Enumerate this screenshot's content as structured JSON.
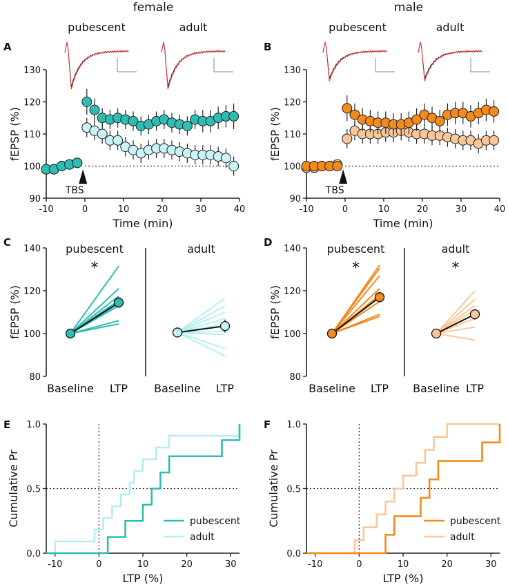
{
  "colors": {
    "teal": "#2dbdb3",
    "teal_light": "#c9f4f6",
    "teal_light_line": "#b5eef2",
    "orange": "#f28a1c",
    "orange_light": "#fbc79a",
    "red_trace": "#e8383c",
    "black": "#111111"
  },
  "headers": {
    "female": "female",
    "male": "male",
    "pubescent": "pubescent",
    "adult": "adult"
  },
  "chart_data": [
    {
      "panel": "A",
      "type": "line",
      "title": "female",
      "xlabel": "Time (min)",
      "ylabel": "fEPSP (%)",
      "xlim": [
        -10,
        40
      ],
      "ylim": [
        90,
        130
      ],
      "xticks": [
        -10,
        0,
        10,
        20,
        30,
        40
      ],
      "yticks": [
        90,
        100,
        110,
        120,
        130
      ],
      "baseline": 100,
      "annotation": "TBS",
      "series": [
        {
          "name": "pubescent",
          "x": [
            -10,
            -8,
            -6,
            -4,
            -2,
            0.5,
            2.5,
            4.5,
            6.5,
            8.5,
            10.5,
            12.5,
            14.5,
            16.5,
            18.5,
            20.5,
            22.5,
            24.5,
            26.5,
            28.5,
            30.5,
            32.5,
            34.5,
            36.5,
            38.5
          ],
          "y": [
            99,
            99,
            100,
            100.5,
            101,
            120,
            117.5,
            115,
            114.5,
            115,
            114.5,
            114,
            112.5,
            113,
            114,
            114.5,
            113.5,
            113,
            112.5,
            114.5,
            114,
            114,
            115,
            115.5,
            115.5
          ],
          "err": [
            1.2,
            1.2,
            1.2,
            1.2,
            1.2,
            4,
            3.5,
            3,
            3,
            3,
            3,
            3,
            3,
            3,
            3,
            3,
            3,
            3,
            3,
            3,
            3.5,
            3.5,
            3.5,
            3.5,
            4
          ]
        },
        {
          "name": "adult",
          "x": [
            -10,
            -8,
            -6,
            -4,
            -2,
            0.5,
            2.5,
            4.5,
            6.5,
            8.5,
            10.5,
            12.5,
            14.5,
            16.5,
            18.5,
            20.5,
            22.5,
            24.5,
            26.5,
            28.5,
            30.5,
            32.5,
            34.5,
            36.5,
            38.5
          ],
          "y": [
            99,
            99,
            100,
            100.5,
            101,
            112,
            111,
            110,
            108,
            108,
            106,
            105,
            104,
            105,
            105.5,
            105.5,
            105,
            104.5,
            104,
            103.5,
            103.5,
            103.5,
            103,
            102.5,
            100
          ],
          "err": [
            1.2,
            1.2,
            1.2,
            1.2,
            1.2,
            3,
            3,
            3,
            3,
            3,
            3,
            3,
            3,
            3,
            3,
            3,
            3,
            3,
            3,
            3,
            3,
            3,
            3,
            3,
            3
          ]
        }
      ]
    },
    {
      "panel": "B",
      "type": "line",
      "title": "male",
      "xlabel": "Time (min)",
      "ylabel": "fEPSP (%)",
      "xlim": [
        -10,
        40
      ],
      "ylim": [
        90,
        130
      ],
      "xticks": [
        -10,
        0,
        10,
        20,
        30,
        40
      ],
      "yticks": [
        90,
        100,
        110,
        120,
        130
      ],
      "baseline": 100,
      "annotation": "TBS",
      "series": [
        {
          "name": "pubescent",
          "x": [
            -10,
            -8,
            -6,
            -4,
            -2,
            0.5,
            2.5,
            4.5,
            6.5,
            8.5,
            10.5,
            12.5,
            14.5,
            16.5,
            18.5,
            20.5,
            22.5,
            24.5,
            26.5,
            28.5,
            30.5,
            32.5,
            34.5,
            36.5,
            38.5
          ],
          "y": [
            100,
            100,
            100,
            100,
            100,
            118,
            116,
            114.5,
            114,
            113.5,
            113.5,
            113,
            113,
            113.5,
            114.5,
            116,
            115,
            114,
            116,
            116.5,
            116.5,
            115.5,
            116.5,
            117.5,
            117
          ],
          "err": [
            1,
            1,
            1,
            1,
            1,
            4,
            3.5,
            3.5,
            3.5,
            3.5,
            3.5,
            3.5,
            3.5,
            3.5,
            3.5,
            3.5,
            3.5,
            3.5,
            3.5,
            3.5,
            3.5,
            3.5,
            3.5,
            3.5,
            3.5
          ]
        },
        {
          "name": "adult",
          "x": [
            -10,
            -8,
            -6,
            -4,
            -2,
            0.5,
            2.5,
            4.5,
            6.5,
            8.5,
            10.5,
            12.5,
            14.5,
            16.5,
            18.5,
            20.5,
            22.5,
            24.5,
            26.5,
            28.5,
            30.5,
            32.5,
            34.5,
            36.5,
            38.5
          ],
          "y": [
            99.5,
            99.5,
            100,
            100,
            100.5,
            108.5,
            111,
            110,
            110,
            110,
            110.5,
            110.5,
            111,
            110.5,
            110,
            110,
            109.5,
            109.5,
            109,
            108.5,
            108,
            108,
            107,
            108,
            108
          ],
          "err": [
            1,
            1,
            1,
            1,
            1,
            3,
            3,
            3,
            3,
            3,
            3,
            3,
            3,
            3,
            3,
            3,
            3,
            3,
            3,
            3,
            3,
            3,
            3,
            3,
            3
          ]
        }
      ]
    },
    {
      "panel": "C",
      "type": "line",
      "title": "female",
      "ylabel": "fEPSP (%)",
      "ylim": [
        80,
        140
      ],
      "yticks": [
        80,
        100,
        120,
        140
      ],
      "categories": [
        "Baseline",
        "LTP"
      ],
      "subplots": [
        {
          "label": "pubescent",
          "significant": "*",
          "mean": [
            100,
            114.5
          ],
          "sem": [
            0.5,
            2.5
          ],
          "individual_ltp": [
            131.5,
            121,
            117.5,
            115.5,
            114,
            113,
            106,
            104.5
          ]
        },
        {
          "label": "adult",
          "significant": "",
          "mean": [
            100.5,
            103.5
          ],
          "sem": [
            0.5,
            3
          ],
          "individual_ltp": [
            116.5,
            113,
            110,
            107,
            104.5,
            101,
            99.5,
            93,
            89.5
          ]
        }
      ]
    },
    {
      "panel": "D",
      "type": "line",
      "title": "male",
      "ylabel": "fEPSP (%)",
      "ylim": [
        80,
        140
      ],
      "yticks": [
        80,
        100,
        120,
        140
      ],
      "categories": [
        "Baseline",
        "LTP"
      ],
      "subplots": [
        {
          "label": "pubescent",
          "significant": "*",
          "mean": [
            100,
            117
          ],
          "sem": [
            0.5,
            2.5
          ],
          "individual_ltp": [
            132,
            130.5,
            127,
            121,
            118,
            115,
            109,
            108
          ]
        },
        {
          "label": "adult",
          "significant": "*",
          "mean": [
            100,
            109
          ],
          "sem": [
            0.5,
            2.5
          ],
          "individual_ltp": [
            120,
            116,
            113,
            111,
            109,
            107,
            103,
            97
          ]
        }
      ]
    },
    {
      "panel": "E",
      "type": "line",
      "title": "female",
      "xlabel": "LTP (%)",
      "ylabel": "Cumulative Pr",
      "xlim": [
        -12,
        32
      ],
      "ylim": [
        0,
        1
      ],
      "xticks": [
        -10,
        0,
        10,
        20,
        30
      ],
      "yticks": [
        0,
        0.5,
        1
      ],
      "ytick_labels": [
        "0.0",
        "0.5",
        "1.0"
      ],
      "legend": "bottom-right",
      "series": [
        {
          "name": "pubescent",
          "values": [
            2,
            6,
            10,
            12,
            14,
            16,
            28,
            32
          ]
        },
        {
          "name": "adult",
          "values": [
            -10,
            -1,
            1,
            3,
            5,
            7,
            8,
            10,
            13,
            16,
            32
          ]
        }
      ]
    },
    {
      "panel": "F",
      "type": "line",
      "title": "male",
      "xlabel": "LTP (%)",
      "ylabel": "Cumulative Pr",
      "xlim": [
        -12,
        32
      ],
      "ylim": [
        0,
        1
      ],
      "xticks": [
        -10,
        0,
        10,
        20,
        30
      ],
      "yticks": [
        0,
        0.5,
        1
      ],
      "ytick_labels": [
        "0.0",
        "0.5",
        "1.0"
      ],
      "legend": "bottom-right",
      "series": [
        {
          "name": "pubescent",
          "values": [
            6,
            8,
            14,
            16,
            18,
            28,
            32
          ]
        },
        {
          "name": "adult",
          "values": [
            -1,
            1,
            4,
            6,
            8,
            10,
            13,
            15,
            17,
            20
          ]
        }
      ]
    }
  ]
}
